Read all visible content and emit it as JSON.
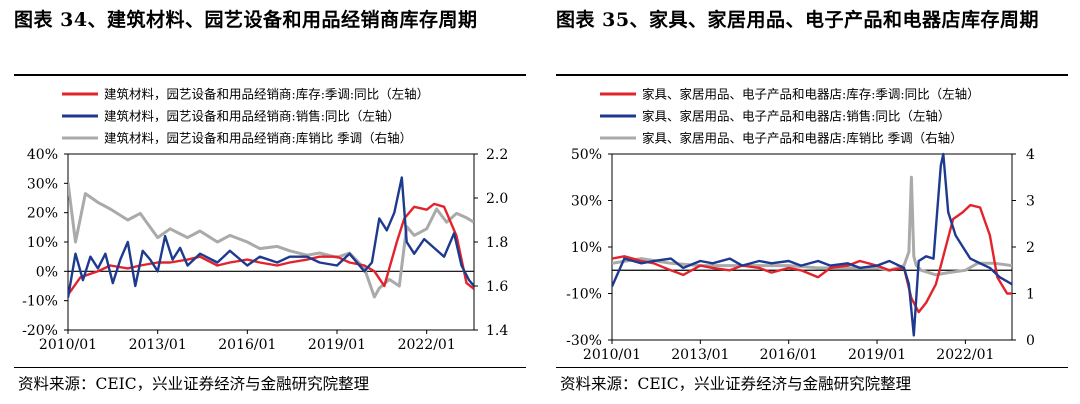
{
  "panels": [
    {
      "title": "图表 34、建筑材料、园艺设备和用品经销商库存周期",
      "source": "资料来源：CEIC，兴业证券经济与金融研究院整理",
      "chart_data": {
        "type": "line",
        "x_ticks": [
          "2010/01",
          "2013/01",
          "2016/01",
          "2019/01",
          "2022/01"
        ],
        "x_range": [
          "2010-01",
          "2023-08"
        ],
        "y_left": {
          "ticks": [
            "40%",
            "30%",
            "20%",
            "10%",
            "0%",
            "-10%",
            "-20%"
          ],
          "range": [
            -0.2,
            0.4
          ],
          "zero_line": true
        },
        "y_right": {
          "ticks": [
            "2.2",
            "2.0",
            "1.8",
            "1.6",
            "1.4"
          ],
          "range": [
            1.4,
            2.2
          ]
        },
        "series": [
          {
            "name": "建筑材料，园艺设备和用品经销商:库存:季调:同比（左轴）",
            "color": "#e3232c",
            "axis": "left",
            "x": [
              "2010-01",
              "2010-06",
              "2011-01",
              "2011-06",
              "2012-01",
              "2012-06",
              "2013-01",
              "2013-06",
              "2014-01",
              "2014-06",
              "2015-01",
              "2015-06",
              "2016-01",
              "2016-06",
              "2017-01",
              "2017-06",
              "2018-01",
              "2018-06",
              "2019-01",
              "2019-06",
              "2019-12",
              "2020-04",
              "2020-08",
              "2021-01",
              "2021-04",
              "2021-08",
              "2022-01",
              "2022-04",
              "2022-08",
              "2023-01",
              "2023-05",
              "2023-08"
            ],
            "y": [
              -0.08,
              -0.02,
              0.0,
              0.02,
              0.01,
              0.02,
              0.03,
              0.03,
              0.04,
              0.05,
              0.02,
              0.03,
              0.04,
              0.03,
              0.02,
              0.03,
              0.04,
              0.05,
              0.05,
              0.03,
              0.02,
              0.0,
              -0.05,
              0.1,
              0.18,
              0.22,
              0.21,
              0.23,
              0.22,
              0.12,
              -0.04,
              -0.06
            ]
          },
          {
            "name": "建筑材料，园艺设备和用品经销商:销售:同比（左轴）",
            "color": "#1d3a8f",
            "axis": "left",
            "x": [
              "2010-01",
              "2010-04",
              "2010-07",
              "2010-10",
              "2011-01",
              "2011-04",
              "2011-07",
              "2011-10",
              "2012-01",
              "2012-04",
              "2012-07",
              "2012-10",
              "2013-01",
              "2013-04",
              "2013-07",
              "2013-10",
              "2014-01",
              "2014-06",
              "2015-01",
              "2015-06",
              "2016-01",
              "2016-06",
              "2017-01",
              "2017-06",
              "2018-01",
              "2018-06",
              "2019-01",
              "2019-06",
              "2019-12",
              "2020-03",
              "2020-06",
              "2020-09",
              "2020-12",
              "2021-03",
              "2021-05",
              "2021-08",
              "2021-12",
              "2022-04",
              "2022-08",
              "2022-12",
              "2023-03",
              "2023-06",
              "2023-08"
            ],
            "y": [
              -0.09,
              0.06,
              -0.03,
              0.05,
              0.01,
              0.06,
              -0.04,
              0.04,
              0.1,
              -0.05,
              0.07,
              0.04,
              0.0,
              0.12,
              0.04,
              0.08,
              0.02,
              0.06,
              0.03,
              0.07,
              0.02,
              0.05,
              0.03,
              0.05,
              0.05,
              0.03,
              0.02,
              0.06,
              0.0,
              0.03,
              0.18,
              0.14,
              0.2,
              0.32,
              0.1,
              0.06,
              0.11,
              0.08,
              0.05,
              0.13,
              0.02,
              -0.03,
              -0.05
            ]
          },
          {
            "name": "建筑材料，园艺设备和用品经销商:库销比 季调（右轴）",
            "color": "#aaaaaa",
            "axis": "right",
            "x": [
              "2010-01",
              "2010-04",
              "2010-08",
              "2011-01",
              "2011-06",
              "2012-01",
              "2012-06",
              "2013-01",
              "2013-06",
              "2014-01",
              "2014-06",
              "2015-01",
              "2015-06",
              "2016-01",
              "2016-06",
              "2017-01",
              "2017-06",
              "2018-01",
              "2018-06",
              "2019-01",
              "2019-06",
              "2019-12",
              "2020-04",
              "2020-06",
              "2020-10",
              "2021-02",
              "2021-05",
              "2021-08",
              "2022-01",
              "2022-05",
              "2022-09",
              "2023-01",
              "2023-05",
              "2023-08"
            ],
            "y": [
              2.07,
              1.8,
              2.02,
              1.98,
              1.95,
              1.9,
              1.93,
              1.82,
              1.86,
              1.82,
              1.85,
              1.8,
              1.83,
              1.8,
              1.77,
              1.78,
              1.76,
              1.74,
              1.75,
              1.73,
              1.75,
              1.68,
              1.55,
              1.59,
              1.63,
              1.6,
              1.87,
              1.83,
              1.86,
              1.95,
              1.89,
              1.93,
              1.91,
              1.89
            ]
          }
        ]
      }
    },
    {
      "title": "图表 35、家具、家居用品、电子产品和电器店库存周期",
      "source": "资料来源：CEIC，兴业证券经济与金融研究院整理",
      "chart_data": {
        "type": "line",
        "x_ticks": [
          "2010/01",
          "2013/01",
          "2016/01",
          "2019/01",
          "2022/01"
        ],
        "x_range": [
          "2010-01",
          "2023-08"
        ],
        "y_left": {
          "ticks": [
            "50%",
            "30%",
            "10%",
            "-10%",
            "-30%"
          ],
          "range": [
            -0.3,
            0.5
          ],
          "zero_line": true
        },
        "y_right": {
          "ticks": [
            "4",
            "3",
            "2",
            "1",
            "0"
          ],
          "range": [
            0,
            4
          ]
        },
        "series": [
          {
            "name": "家具、家居用品、电子产品和电器店:库存:季调:同比（左轴）",
            "color": "#e3232c",
            "axis": "left",
            "x": [
              "2010-01",
              "2010-06",
              "2011-01",
              "2011-06",
              "2012-01",
              "2012-06",
              "2013-01",
              "2013-06",
              "2014-01",
              "2014-06",
              "2015-01",
              "2015-06",
              "2016-01",
              "2016-06",
              "2017-01",
              "2017-06",
              "2018-01",
              "2018-06",
              "2019-01",
              "2019-06",
              "2019-12",
              "2020-03",
              "2020-06",
              "2020-09",
              "2021-01",
              "2021-04",
              "2021-08",
              "2021-12",
              "2022-03",
              "2022-07",
              "2022-11",
              "2023-02",
              "2023-06",
              "2023-08"
            ],
            "y": [
              0.05,
              0.06,
              0.04,
              0.03,
              0.0,
              -0.02,
              0.02,
              0.01,
              0.0,
              0.02,
              0.01,
              -0.01,
              0.01,
              0.0,
              -0.03,
              0.01,
              0.02,
              0.04,
              0.02,
              0.0,
              0.01,
              -0.12,
              -0.18,
              -0.14,
              -0.06,
              0.06,
              0.22,
              0.25,
              0.28,
              0.27,
              0.15,
              -0.03,
              -0.1,
              -0.1
            ]
          },
          {
            "name": "家具、家居用品、电子产品和电器店:销售:同比（左轴）",
            "color": "#1d3a8f",
            "axis": "left",
            "x": [
              "2010-01",
              "2010-06",
              "2011-01",
              "2011-06",
              "2012-01",
              "2012-06",
              "2013-01",
              "2013-06",
              "2014-01",
              "2014-06",
              "2015-01",
              "2015-06",
              "2016-01",
              "2016-06",
              "2017-01",
              "2017-06",
              "2018-01",
              "2018-06",
              "2019-01",
              "2019-06",
              "2019-12",
              "2020-02",
              "2020-04",
              "2020-06",
              "2020-09",
              "2020-12",
              "2021-03",
              "2021-04",
              "2021-06",
              "2021-09",
              "2021-12",
              "2022-03",
              "2022-07",
              "2022-11",
              "2023-03",
              "2023-08"
            ],
            "y": [
              -0.07,
              0.05,
              0.03,
              0.04,
              0.05,
              0.01,
              0.04,
              0.03,
              0.05,
              0.02,
              0.04,
              0.03,
              0.04,
              0.02,
              0.04,
              0.02,
              0.03,
              0.01,
              0.02,
              0.04,
              0.01,
              -0.06,
              -0.28,
              0.04,
              0.06,
              0.05,
              0.45,
              0.5,
              0.25,
              0.15,
              0.1,
              0.05,
              0.03,
              0.01,
              -0.03,
              -0.06
            ]
          },
          {
            "name": "家具、家居用品、电子产品和电器店:库销比 季调（右轴）",
            "color": "#aaaaaa",
            "axis": "right",
            "x": [
              "2010-01",
              "2011-01",
              "2012-01",
              "2013-01",
              "2014-01",
              "2015-01",
              "2016-01",
              "2017-01",
              "2018-01",
              "2019-01",
              "2019-06",
              "2019-12",
              "2020-02",
              "2020-03",
              "2020-04",
              "2020-05",
              "2020-07",
              "2020-10",
              "2021-01",
              "2021-06",
              "2022-01",
              "2022-06",
              "2023-01",
              "2023-08"
            ],
            "y": [
              1.65,
              1.75,
              1.65,
              1.6,
              1.6,
              1.6,
              1.6,
              1.55,
              1.55,
              1.55,
              1.5,
              1.6,
              1.9,
              3.5,
              1.8,
              1.6,
              1.5,
              1.45,
              1.4,
              1.45,
              1.5,
              1.65,
              1.65,
              1.6
            ]
          }
        ]
      }
    }
  ]
}
